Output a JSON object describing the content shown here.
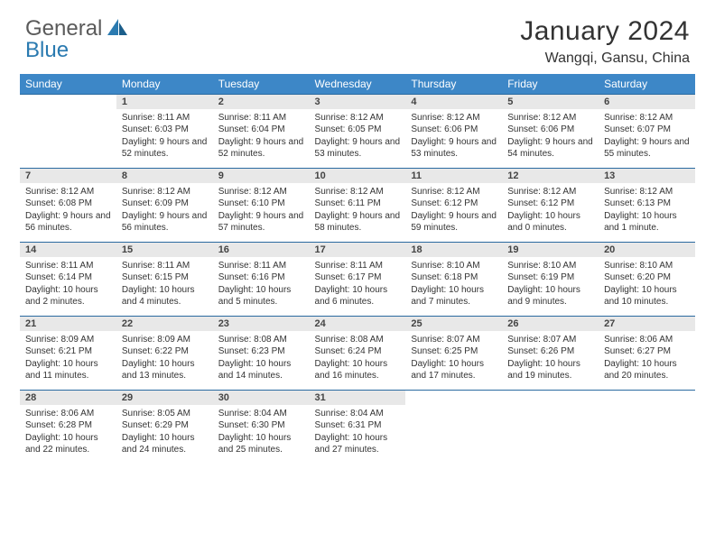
{
  "brand": {
    "part1": "General",
    "part2": "Blue"
  },
  "title": "January 2024",
  "location": "Wangqi, Gansu, China",
  "colors": {
    "header_bg": "#3d87c7",
    "header_text": "#ffffff",
    "daynum_bg": "#e8e8e8",
    "border": "#2a6aa0",
    "body_text": "#333333",
    "logo_gray": "#5a5a5a",
    "logo_blue": "#2a7ab0"
  },
  "typography": {
    "title_fontsize": 30,
    "location_fontsize": 16,
    "header_fontsize": 12,
    "daynum_fontsize": 11,
    "detail_fontsize": 10
  },
  "weekdays": [
    "Sunday",
    "Monday",
    "Tuesday",
    "Wednesday",
    "Thursday",
    "Friday",
    "Saturday"
  ],
  "weeks": [
    {
      "nums": [
        "",
        "1",
        "2",
        "3",
        "4",
        "5",
        "6"
      ],
      "cells": [
        "",
        "Sunrise: 8:11 AM\nSunset: 6:03 PM\nDaylight: 9 hours and 52 minutes.",
        "Sunrise: 8:11 AM\nSunset: 6:04 PM\nDaylight: 9 hours and 52 minutes.",
        "Sunrise: 8:12 AM\nSunset: 6:05 PM\nDaylight: 9 hours and 53 minutes.",
        "Sunrise: 8:12 AM\nSunset: 6:06 PM\nDaylight: 9 hours and 53 minutes.",
        "Sunrise: 8:12 AM\nSunset: 6:06 PM\nDaylight: 9 hours and 54 minutes.",
        "Sunrise: 8:12 AM\nSunset: 6:07 PM\nDaylight: 9 hours and 55 minutes."
      ]
    },
    {
      "nums": [
        "7",
        "8",
        "9",
        "10",
        "11",
        "12",
        "13"
      ],
      "cells": [
        "Sunrise: 8:12 AM\nSunset: 6:08 PM\nDaylight: 9 hours and 56 minutes.",
        "Sunrise: 8:12 AM\nSunset: 6:09 PM\nDaylight: 9 hours and 56 minutes.",
        "Sunrise: 8:12 AM\nSunset: 6:10 PM\nDaylight: 9 hours and 57 minutes.",
        "Sunrise: 8:12 AM\nSunset: 6:11 PM\nDaylight: 9 hours and 58 minutes.",
        "Sunrise: 8:12 AM\nSunset: 6:12 PM\nDaylight: 9 hours and 59 minutes.",
        "Sunrise: 8:12 AM\nSunset: 6:12 PM\nDaylight: 10 hours and 0 minutes.",
        "Sunrise: 8:12 AM\nSunset: 6:13 PM\nDaylight: 10 hours and 1 minute."
      ]
    },
    {
      "nums": [
        "14",
        "15",
        "16",
        "17",
        "18",
        "19",
        "20"
      ],
      "cells": [
        "Sunrise: 8:11 AM\nSunset: 6:14 PM\nDaylight: 10 hours and 2 minutes.",
        "Sunrise: 8:11 AM\nSunset: 6:15 PM\nDaylight: 10 hours and 4 minutes.",
        "Sunrise: 8:11 AM\nSunset: 6:16 PM\nDaylight: 10 hours and 5 minutes.",
        "Sunrise: 8:11 AM\nSunset: 6:17 PM\nDaylight: 10 hours and 6 minutes.",
        "Sunrise: 8:10 AM\nSunset: 6:18 PM\nDaylight: 10 hours and 7 minutes.",
        "Sunrise: 8:10 AM\nSunset: 6:19 PM\nDaylight: 10 hours and 9 minutes.",
        "Sunrise: 8:10 AM\nSunset: 6:20 PM\nDaylight: 10 hours and 10 minutes."
      ]
    },
    {
      "nums": [
        "21",
        "22",
        "23",
        "24",
        "25",
        "26",
        "27"
      ],
      "cells": [
        "Sunrise: 8:09 AM\nSunset: 6:21 PM\nDaylight: 10 hours and 11 minutes.",
        "Sunrise: 8:09 AM\nSunset: 6:22 PM\nDaylight: 10 hours and 13 minutes.",
        "Sunrise: 8:08 AM\nSunset: 6:23 PM\nDaylight: 10 hours and 14 minutes.",
        "Sunrise: 8:08 AM\nSunset: 6:24 PM\nDaylight: 10 hours and 16 minutes.",
        "Sunrise: 8:07 AM\nSunset: 6:25 PM\nDaylight: 10 hours and 17 minutes.",
        "Sunrise: 8:07 AM\nSunset: 6:26 PM\nDaylight: 10 hours and 19 minutes.",
        "Sunrise: 8:06 AM\nSunset: 6:27 PM\nDaylight: 10 hours and 20 minutes."
      ]
    },
    {
      "nums": [
        "28",
        "29",
        "30",
        "31",
        "",
        "",
        ""
      ],
      "cells": [
        "Sunrise: 8:06 AM\nSunset: 6:28 PM\nDaylight: 10 hours and 22 minutes.",
        "Sunrise: 8:05 AM\nSunset: 6:29 PM\nDaylight: 10 hours and 24 minutes.",
        "Sunrise: 8:04 AM\nSunset: 6:30 PM\nDaylight: 10 hours and 25 minutes.",
        "Sunrise: 8:04 AM\nSunset: 6:31 PM\nDaylight: 10 hours and 27 minutes.",
        "",
        "",
        ""
      ]
    }
  ]
}
